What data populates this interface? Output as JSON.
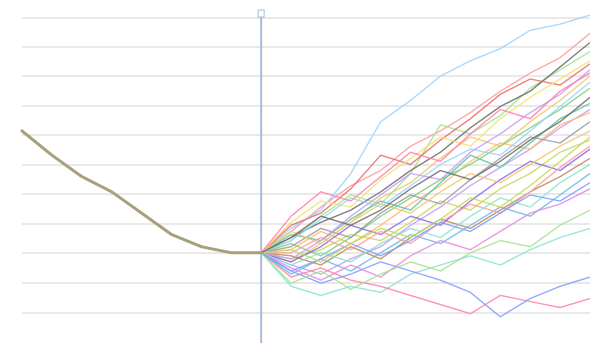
{
  "chart_data": {
    "type": "line",
    "title": "",
    "xlabel": "",
    "ylabel": "",
    "grid": true,
    "legend": "none",
    "x_range": [
      0,
      19
    ],
    "y_range": [
      0,
      10.5
    ],
    "divider_x": 8,
    "colors": {
      "history": "#a8a07a",
      "divider": "#a9bcd6",
      "grid": "#e2e2e2"
    },
    "history": {
      "x": [
        0,
        1,
        2,
        3,
        4,
        5,
        6,
        7,
        8
      ],
      "values": [
        6.6,
        5.8,
        5.1,
        4.6,
        3.9,
        3.2,
        2.8,
        2.6,
        2.6
      ]
    },
    "forecast_start": {
      "x": 8,
      "value": 2.6
    },
    "forecast_palette": [
      "#ff9a9a",
      "#9ad2ff",
      "#a4e28a",
      "#f2c66a",
      "#c79af2",
      "#8ae0d2",
      "#ff7fa8",
      "#7f9cff",
      "#c4d85a",
      "#6a6a6a",
      "#ffb86a",
      "#7ad17a",
      "#e96a6a",
      "#6ab8e9",
      "#b88a5a",
      "#5ac4a8",
      "#e28ae0",
      "#9a9a9a",
      "#f2e26a",
      "#8a6ae2"
    ],
    "series": [
      {
        "values": [
          2.6,
          3.3,
          4.1,
          4.8,
          5.3,
          6.1,
          6.6,
          7.2,
          7.9,
          8.5,
          9.0,
          9.8
        ]
      },
      {
        "values": [
          2.6,
          3.4,
          4.0,
          5.2,
          6.9,
          7.6,
          8.4,
          8.9,
          9.3,
          9.9,
          10.1,
          10.4
        ]
      },
      {
        "values": [
          2.6,
          3.0,
          3.8,
          4.5,
          4.2,
          5.2,
          6.8,
          6.5,
          7.1,
          8.0,
          8.6,
          9.2
        ]
      },
      {
        "values": [
          2.6,
          2.3,
          2.9,
          3.6,
          4.4,
          4.9,
          5.7,
          6.4,
          6.1,
          6.9,
          7.6,
          8.4
        ]
      },
      {
        "values": [
          2.6,
          2.2,
          1.9,
          2.4,
          2.8,
          3.5,
          4.1,
          4.8,
          5.4,
          6.0,
          6.7,
          7.3
        ]
      },
      {
        "values": [
          2.6,
          1.5,
          1.2,
          1.5,
          1.3,
          1.9,
          2.2,
          2.5,
          2.2,
          2.7,
          3.1,
          3.4
        ]
      },
      {
        "values": [
          2.6,
          1.8,
          2.1,
          1.7,
          1.5,
          1.2,
          0.9,
          0.6,
          1.2,
          1.0,
          0.8,
          1.1
        ]
      },
      {
        "values": [
          2.6,
          2.0,
          1.6,
          1.9,
          2.3,
          2.0,
          1.7,
          1.3,
          0.5,
          1.1,
          1.5,
          1.8
        ]
      },
      {
        "values": [
          2.6,
          2.4,
          2.7,
          3.2,
          3.0,
          3.6,
          4.3,
          4.0,
          4.7,
          5.2,
          5.9,
          6.3
        ]
      },
      {
        "values": [
          2.6,
          3.1,
          3.6,
          4.0,
          4.6,
          5.3,
          5.9,
          6.7,
          7.4,
          7.9,
          8.7,
          9.5
        ]
      },
      {
        "values": [
          2.6,
          2.7,
          3.3,
          2.9,
          3.5,
          4.2,
          4.8,
          5.6,
          6.2,
          6.0,
          6.8,
          7.2
        ]
      },
      {
        "values": [
          2.6,
          2.9,
          2.5,
          3.1,
          3.8,
          4.4,
          5.0,
          5.5,
          6.1,
          6.7,
          7.3,
          8.0
        ]
      },
      {
        "values": [
          2.6,
          3.5,
          3.9,
          4.7,
          5.8,
          5.5,
          6.3,
          7.0,
          7.8,
          8.3,
          8.1,
          8.8
        ]
      },
      {
        "values": [
          2.6,
          1.9,
          2.4,
          2.0,
          2.6,
          3.2,
          2.9,
          3.5,
          4.1,
          3.8,
          4.5,
          5.2
        ]
      },
      {
        "values": [
          2.6,
          2.5,
          2.2,
          2.8,
          2.4,
          3.1,
          3.7,
          3.4,
          4.0,
          4.6,
          5.1,
          5.7
        ]
      },
      {
        "values": [
          2.6,
          3.2,
          3.0,
          3.7,
          4.3,
          4.0,
          4.9,
          5.8,
          5.4,
          6.2,
          7.0,
          7.5
        ]
      },
      {
        "values": [
          2.6,
          2.1,
          1.7,
          2.2,
          1.8,
          2.5,
          3.0,
          2.7,
          3.3,
          3.9,
          4.2,
          4.7
        ]
      },
      {
        "values": [
          2.6,
          2.8,
          3.4,
          3.1,
          3.9,
          4.5,
          4.2,
          5.0,
          5.7,
          6.4,
          6.2,
          6.9
        ]
      },
      {
        "values": [
          2.6,
          3.6,
          4.3,
          4.1,
          5.0,
          5.7,
          6.4,
          6.1,
          7.0,
          7.7,
          8.3,
          8.9
        ]
      },
      {
        "values": [
          2.6,
          2.3,
          2.8,
          3.5,
          3.2,
          3.8,
          3.5,
          4.3,
          5.0,
          5.6,
          5.3,
          6.0
        ]
      },
      {
        "values": [
          2.6,
          2.6,
          3.1,
          2.7,
          3.3,
          2.9,
          3.6,
          4.2,
          3.9,
          4.6,
          5.4,
          6.1
        ]
      },
      {
        "values": [
          2.6,
          3.0,
          3.7,
          4.4,
          4.1,
          4.8,
          5.5,
          6.0,
          5.8,
          6.6,
          7.4,
          8.2
        ]
      },
      {
        "values": [
          2.6,
          1.6,
          2.0,
          1.4,
          1.9,
          2.3,
          2.0,
          2.6,
          3.0,
          2.8,
          3.5,
          4.0
        ]
      },
      {
        "values": [
          2.6,
          3.3,
          2.9,
          3.6,
          4.2,
          3.9,
          4.6,
          5.2,
          4.9,
          5.5,
          6.1,
          6.6
        ]
      },
      {
        "values": [
          2.6,
          2.4,
          3.0,
          3.8,
          4.5,
          5.2,
          5.0,
          5.9,
          6.5,
          7.2,
          7.8,
          8.6
        ]
      },
      {
        "values": [
          2.6,
          2.2,
          2.6,
          2.3,
          2.9,
          3.4,
          3.1,
          3.8,
          4.4,
          4.1,
          4.9,
          5.5
        ]
      },
      {
        "values": [
          2.6,
          3.8,
          4.6,
          4.3,
          5.1,
          5.9,
          5.6,
          6.5,
          7.3,
          7.0,
          7.9,
          8.5
        ]
      },
      {
        "values": [
          2.6,
          2.0,
          2.4,
          2.9,
          2.5,
          3.0,
          3.6,
          3.3,
          3.9,
          4.5,
          4.3,
          4.9
        ]
      },
      {
        "values": [
          2.6,
          2.7,
          2.3,
          2.9,
          3.4,
          3.1,
          3.7,
          4.4,
          4.1,
          4.8,
          5.6,
          6.4
        ]
      },
      {
        "values": [
          2.6,
          3.1,
          3.8,
          3.5,
          4.0,
          4.7,
          5.3,
          5.0,
          5.6,
          6.3,
          6.9,
          7.7
        ]
      }
    ]
  }
}
